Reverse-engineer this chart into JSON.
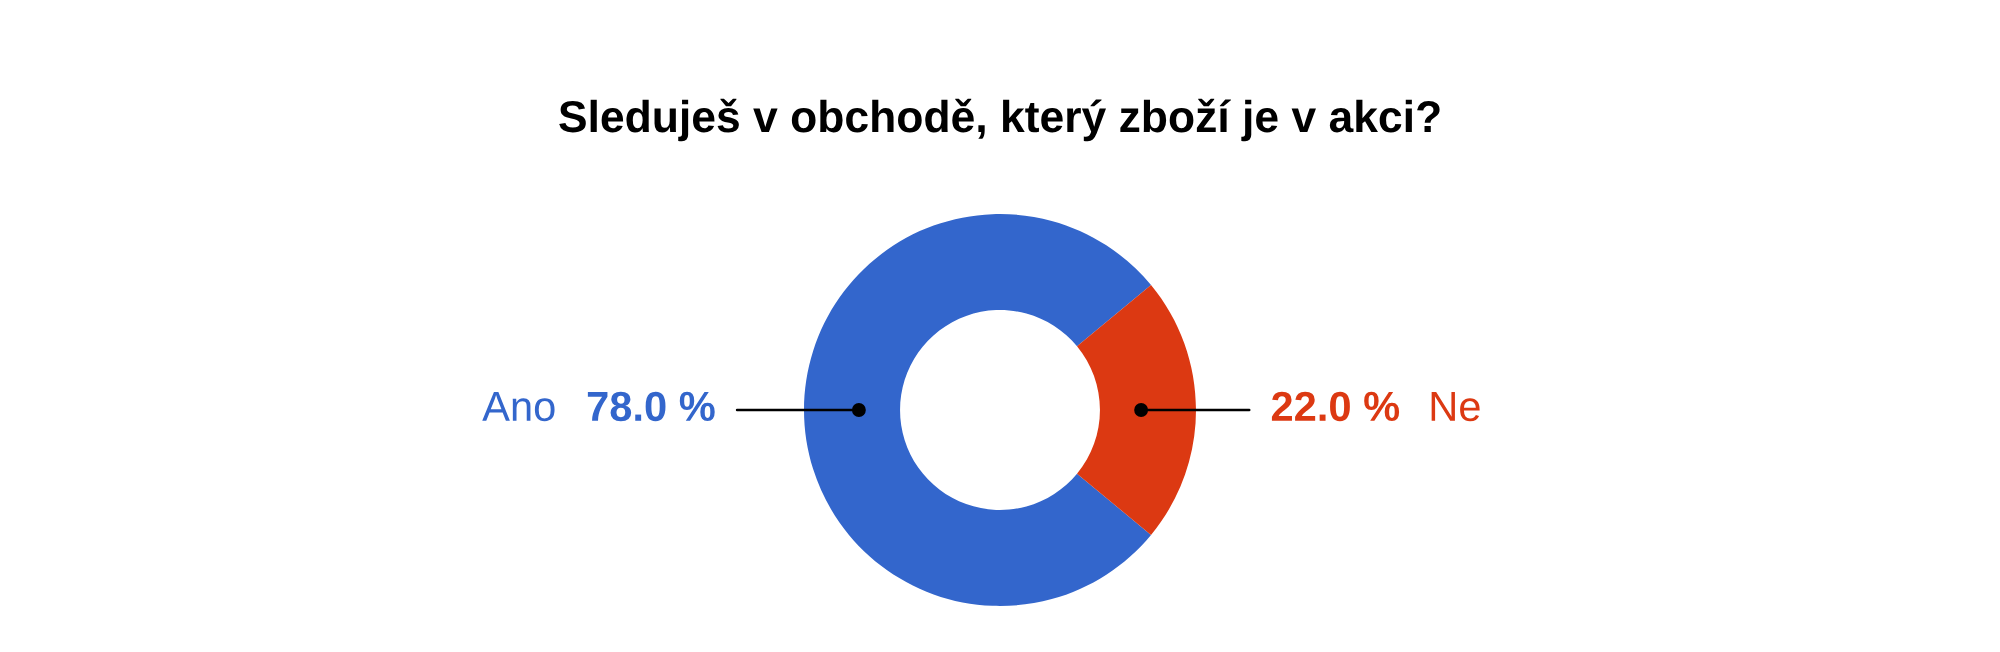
{
  "chart_data": {
    "type": "donut",
    "title": "Sleduješ v obchodě, který zboží je v akci?",
    "categories": [
      "Ano",
      "Ne"
    ],
    "values": [
      78.0,
      22.0
    ],
    "colors": [
      "#3366cc",
      "#dc3912"
    ],
    "value_labels": [
      "78.0 %",
      "22.0 %"
    ],
    "legend": false
  }
}
